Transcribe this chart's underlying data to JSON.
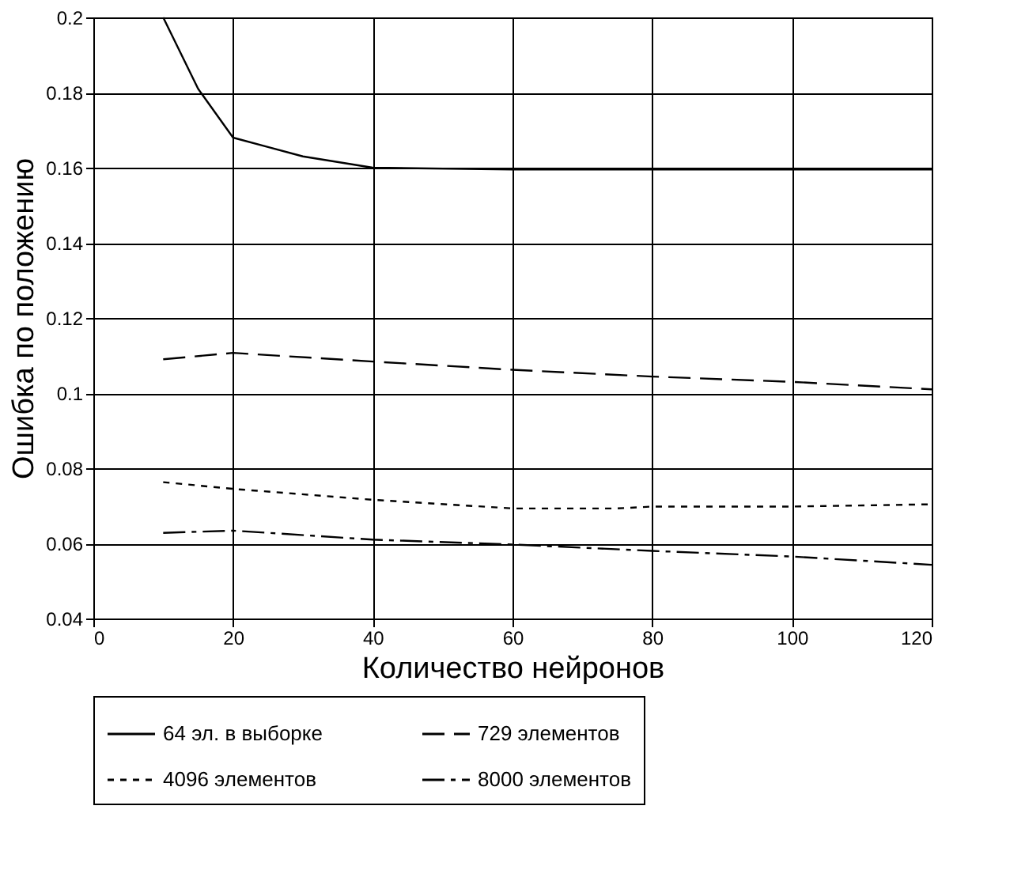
{
  "chart_data": {
    "type": "line",
    "xlabel": "Количество нейронов",
    "ylabel": "Ошибка по положению",
    "xlim": [
      0,
      120
    ],
    "xticks": [
      0,
      20,
      40,
      60,
      80,
      100,
      120
    ],
    "ylim": [
      0.04,
      0.2
    ],
    "yticks": [
      0.04,
      0.06,
      0.08,
      {
        "value": 0.1,
        "label": "0.1"
      },
      0.12,
      0.14,
      0.16,
      0.18,
      {
        "value": 0.2,
        "label": "0.2"
      }
    ],
    "grid": true,
    "legend": "bottom",
    "marker": "none",
    "series": [
      {
        "name": "64 эл. в выборке",
        "color": "#000000",
        "line_style": "solid",
        "x": [
          10,
          15,
          20,
          25,
          30,
          40,
          60,
          80,
          100,
          120
        ],
        "values": [
          0.2,
          0.181,
          0.168,
          0.1655,
          0.163,
          0.16,
          0.1595,
          0.1595,
          0.1595,
          0.1595
        ]
      },
      {
        "name": "729 элементов",
        "color": "#000000",
        "line_style": "dashed",
        "x": [
          10,
          20,
          40,
          60,
          80,
          100,
          120
        ],
        "values": [
          0.109,
          0.1107,
          0.1084,
          0.1062,
          0.1044,
          0.103,
          0.101
        ]
      },
      {
        "name": "4096 элементов",
        "color": "#000000",
        "line_style": "dotted",
        "x": [
          10,
          20,
          40,
          60,
          75,
          80,
          100,
          120
        ],
        "values": [
          0.0763,
          0.0745,
          0.0716,
          0.0693,
          0.0693,
          0.0698,
          0.0698,
          0.0704
        ]
      },
      {
        "name": "8000 элементов",
        "color": "#000000",
        "line_style": "dashdot",
        "x": [
          10,
          20,
          40,
          60,
          80,
          100,
          120
        ],
        "values": [
          0.0628,
          0.0634,
          0.061,
          0.0597,
          0.058,
          0.0565,
          0.0543
        ]
      }
    ]
  }
}
